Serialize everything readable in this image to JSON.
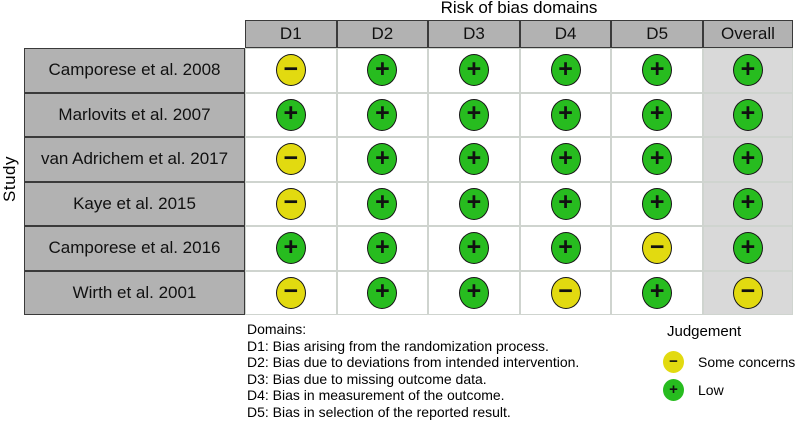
{
  "chart_data": {
    "type": "table",
    "title": "Risk of bias domains",
    "row_axis_label": "Study",
    "columns": [
      "D1",
      "D2",
      "D3",
      "D4",
      "D5",
      "Overall"
    ],
    "rows": [
      {
        "study": "Camporese et al. 2008",
        "judgements": [
          "some_concerns",
          "low",
          "low",
          "low",
          "low",
          "low"
        ]
      },
      {
        "study": "Marlovits et al. 2007",
        "judgements": [
          "low",
          "low",
          "low",
          "low",
          "low",
          "low"
        ]
      },
      {
        "study": "van Adrichem et al. 2017",
        "judgements": [
          "some_concerns",
          "low",
          "low",
          "low",
          "low",
          "low"
        ]
      },
      {
        "study": "Kaye et al. 2015",
        "judgements": [
          "some_concerns",
          "low",
          "low",
          "low",
          "low",
          "low"
        ]
      },
      {
        "study": "Camporese et al. 2016",
        "judgements": [
          "low",
          "low",
          "low",
          "low",
          "some_concerns",
          "low"
        ]
      },
      {
        "study": "Wirth et al. 2001",
        "judgements": [
          "some_concerns",
          "low",
          "low",
          "some_concerns",
          "low",
          "some_concerns"
        ]
      }
    ],
    "symbols": {
      "low": "+",
      "some_concerns": "−"
    },
    "legend": {
      "title": "Judgement",
      "entries": [
        {
          "key": "some_concerns",
          "symbol": "−",
          "label": "Some concerns"
        },
        {
          "key": "low",
          "symbol": "+",
          "label": "Low"
        }
      ]
    },
    "footnote": {
      "heading": "Domains:",
      "lines": [
        "D1: Bias arising from the randomization process.",
        "D2: Bias due to deviations from intended intervention.",
        "D3: Bias due to missing outcome data.",
        "D4: Bias in measurement of the outcome.",
        "D5: Bias in selection of the reported result."
      ]
    }
  },
  "colors": {
    "low": "#27bc1f",
    "some-concerns": "#e2da10",
    "header-bg": "#b2b2b2",
    "overall-bg": "#d9d9d9",
    "cell-border": "#cfd4cf",
    "dark-border": "#3a3a3a"
  }
}
